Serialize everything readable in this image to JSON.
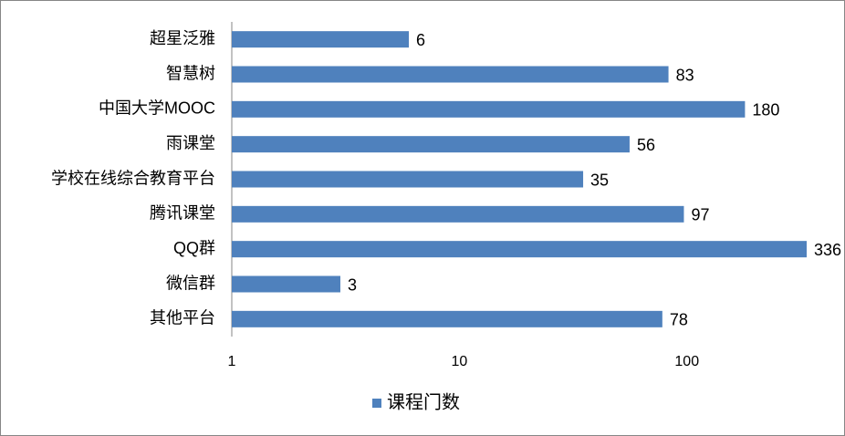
{
  "chart_data": {
    "type": "bar",
    "orientation": "horizontal",
    "categories": [
      "超星泛雅",
      "智慧树",
      "中国大学MOOC",
      "雨课堂",
      "学校在线综合教育平台",
      "腾讯课堂",
      "QQ群",
      "微信群",
      "其他平台"
    ],
    "series": [
      {
        "name": "课程门数",
        "color": "#4f81bd",
        "values": [
          6,
          83,
          180,
          56,
          35,
          97,
          336,
          3,
          78
        ]
      }
    ],
    "xlim": [
      1,
      336
    ],
    "xticks": [
      1,
      10,
      100
    ],
    "xscale": "log",
    "grid": false,
    "legend": "bottom"
  }
}
